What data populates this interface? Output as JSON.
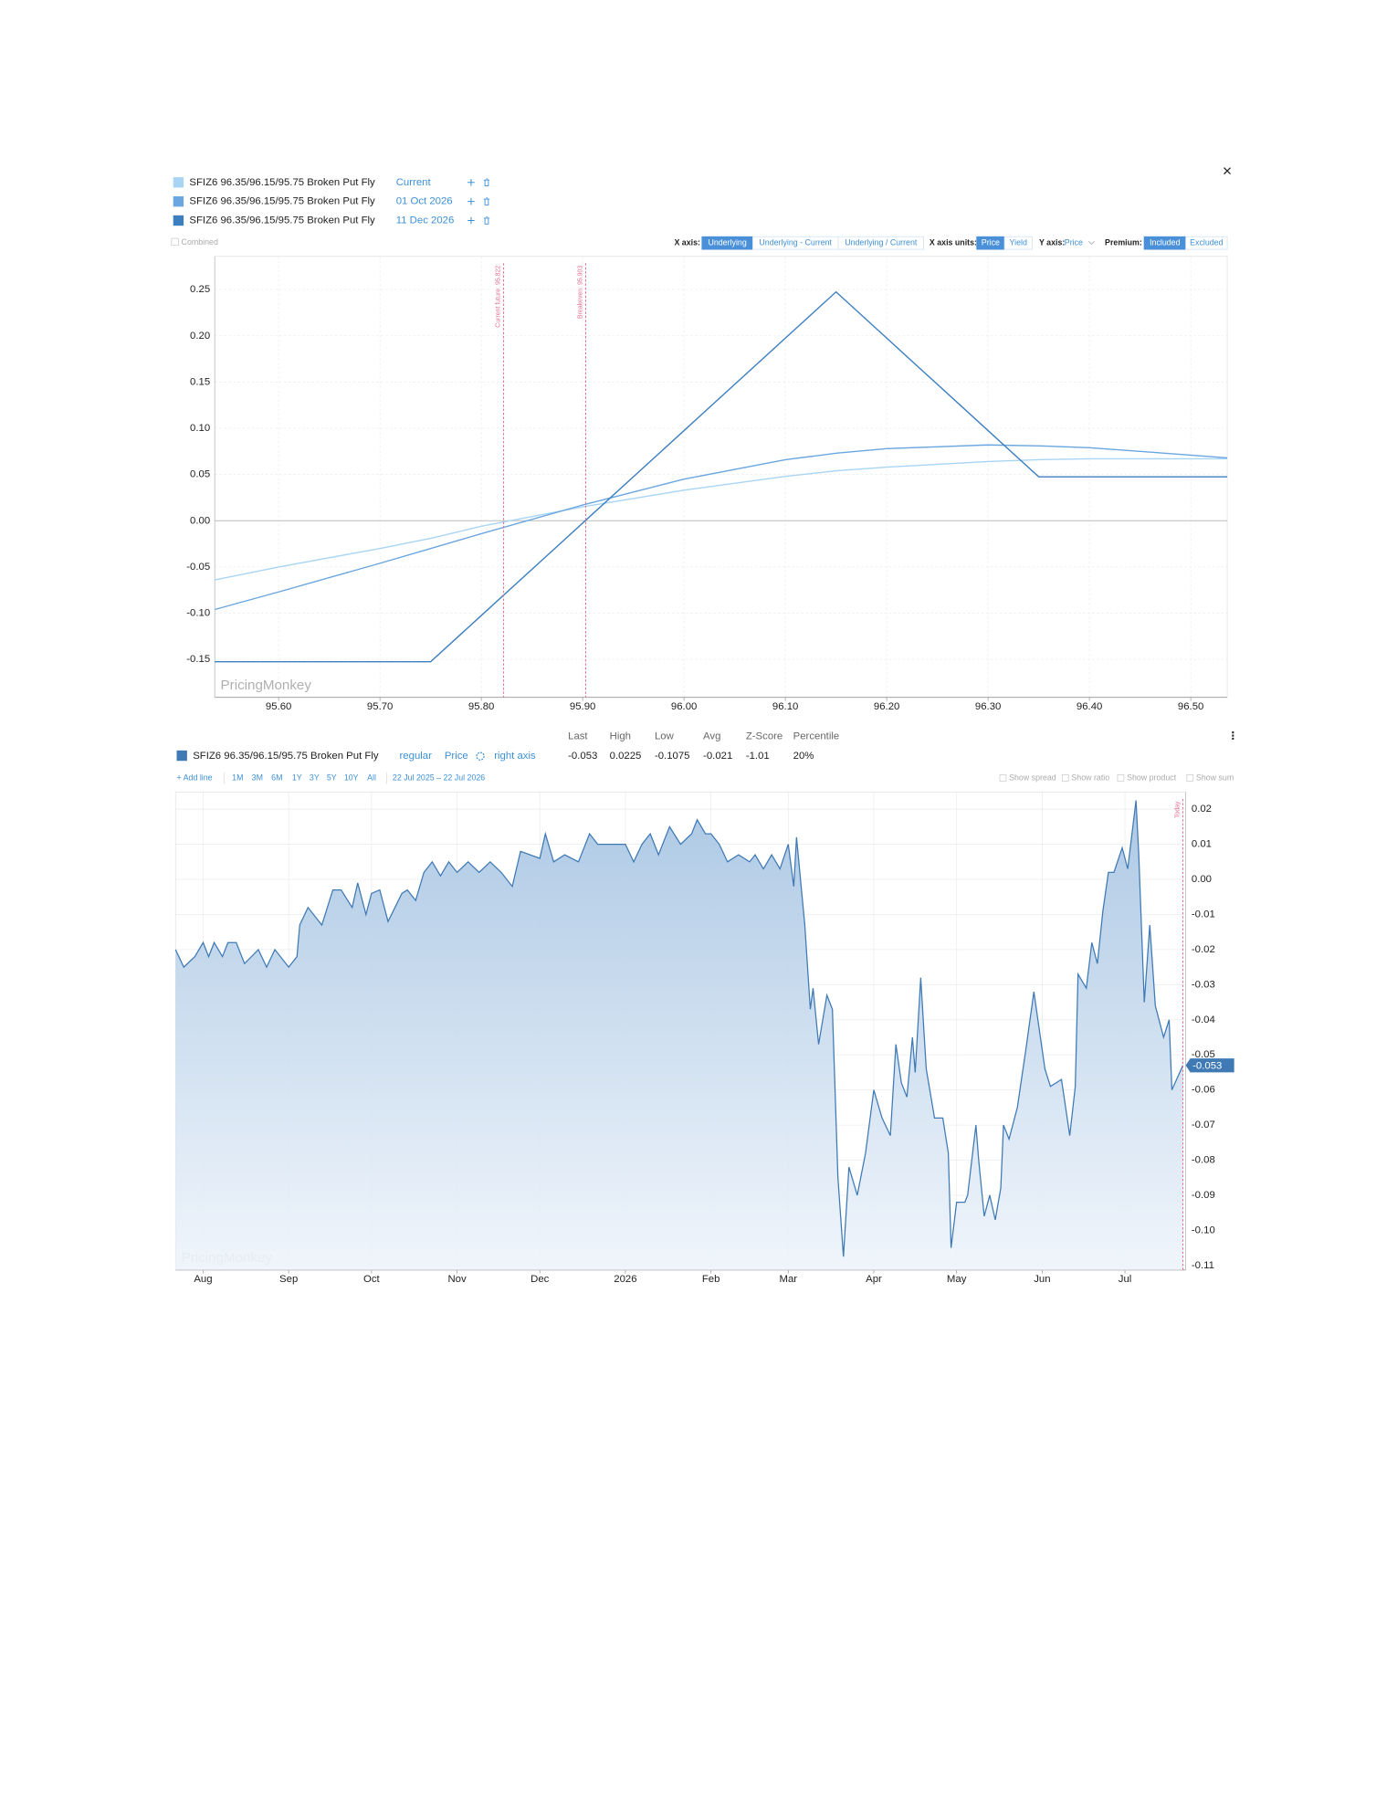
{
  "close": "×",
  "payoff_panel": {
    "combined": "Combined",
    "toolbar": {
      "x_axis": {
        "label": "X axis:",
        "options": [
          "Underlying",
          "Underlying - Current",
          "Underlying / Current"
        ]
      },
      "x_axis_units": {
        "label": "X axis units:",
        "options": [
          "Price",
          "Yield"
        ]
      },
      "y_axis": {
        "label": "Y axis:",
        "value": "Price"
      },
      "premium": {
        "label": "Premium:",
        "options": [
          "Included",
          "Excluded"
        ]
      }
    }
  },
  "history_panel": {
    "stats": {
      "headers": [
        "Last",
        "High",
        "Low",
        "Avg",
        "Z-Score",
        "Percentile"
      ],
      "values": [
        "-0.053",
        "0.0225",
        "-0.1075",
        "-0.021",
        "-1.01",
        "20%"
      ]
    },
    "legend": {
      "style": "regular",
      "units": "Price",
      "axis": "right axis"
    },
    "add_line": "+ Add line",
    "ranges": [
      "1M",
      "3M",
      "6M",
      "1Y",
      "3Y",
      "5Y",
      "10Y",
      "All"
    ],
    "date_range": "22 Jul 2025 – 22 Jul 2026",
    "toggles": [
      "Show spread",
      "Show ratio",
      "Show product",
      "Show sum"
    ]
  },
  "chart_data": [
    {
      "type": "line",
      "x": [
        95.537,
        95.6,
        95.7,
        95.75,
        95.8,
        95.9,
        96.0,
        96.1,
        96.15,
        96.2,
        96.3,
        96.35,
        96.4,
        96.5,
        96.536
      ],
      "series": [
        {
          "name": "SFIZ6 96.35/96.15/95.75 Broken Put Fly",
          "tag": "Current",
          "color": "#a9d5f5",
          "values": [
            -0.064,
            -0.05,
            -0.03,
            -0.019,
            -0.006,
            0.015,
            0.033,
            0.048,
            0.054,
            0.058,
            0.064,
            0.066,
            0.067,
            0.067,
            0.067
          ]
        },
        {
          "name": "SFIZ6 96.35/96.15/95.75 Broken Put Fly",
          "tag": "01 Oct 2026",
          "color": "#6aa6e0",
          "values": [
            -0.096,
            -0.077,
            -0.046,
            -0.03,
            -0.014,
            0.017,
            0.045,
            0.066,
            0.073,
            0.078,
            0.082,
            0.081,
            0.079,
            0.071,
            0.068
          ]
        },
        {
          "name": "SFIZ6 96.35/96.15/95.75 Broken Put Fly",
          "tag": "11 Dec 2026",
          "color": "#3c7fc0",
          "values": [
            -0.1525,
            -0.1525,
            -0.1525,
            -0.1525,
            -0.1025,
            -0.0025,
            0.0975,
            0.1975,
            0.2475,
            0.1975,
            0.0975,
            0.0475,
            0.0475,
            0.0475,
            0.0475
          ]
        }
      ],
      "xlim": [
        95.537,
        96.536
      ],
      "ylim": [
        -0.191,
        0.286
      ],
      "xticks": [
        {
          "value": 95.6,
          "label": "95.60"
        },
        {
          "value": 95.7,
          "label": "95.70"
        },
        {
          "value": 95.8,
          "label": "95.80"
        },
        {
          "value": 95.9,
          "label": "95.90"
        },
        {
          "value": 96.0,
          "label": "96.00"
        },
        {
          "value": 96.1,
          "label": "96.10"
        },
        {
          "value": 96.2,
          "label": "96.20"
        },
        {
          "value": 96.3,
          "label": "96.30"
        },
        {
          "value": 96.4,
          "label": "96.40"
        },
        {
          "value": 96.5,
          "label": "96.50"
        }
      ],
      "yticks": [
        {
          "value": 0.25,
          "label": "0.25"
        },
        {
          "value": 0.2,
          "label": "0.20"
        },
        {
          "value": 0.15,
          "label": "0.15"
        },
        {
          "value": 0.1,
          "label": "0.10"
        },
        {
          "value": 0.05,
          "label": "0.05"
        },
        {
          "value": 0,
          "label": "0.00"
        },
        {
          "value": -0.05,
          "label": "-0.05"
        },
        {
          "value": -0.1,
          "label": "-0.10"
        },
        {
          "value": -0.15,
          "label": "-0.15"
        }
      ],
      "y_axis": "left",
      "grid": true,
      "annotations": [
        {
          "text": "Current future: 95.822",
          "x": 95.822
        },
        {
          "text": "Breakeven: 95.903",
          "x": 95.903
        }
      ],
      "watermark": "PricingMonkey"
    },
    {
      "type": "area",
      "x": [
        "2025-07-22",
        "2025-07-25",
        "2025-07-29",
        "2025-08-01",
        "2025-08-03",
        "2025-08-05",
        "2025-08-08",
        "2025-08-10",
        "2025-08-13",
        "2025-08-16",
        "2025-08-21",
        "2025-08-24",
        "2025-08-27",
        "2025-09-01",
        "2025-09-04",
        "2025-09-05",
        "2025-09-08",
        "2025-09-10",
        "2025-09-13",
        "2025-09-17",
        "2025-09-20",
        "2025-09-24",
        "2025-09-26",
        "2025-09-29",
        "2025-10-01",
        "2025-10-04",
        "2025-10-07",
        "2025-10-12",
        "2025-10-14",
        "2025-10-17",
        "2025-10-20",
        "2025-10-23",
        "2025-10-26",
        "2025-10-29",
        "2025-11-01",
        "2025-11-05",
        "2025-11-09",
        "2025-11-13",
        "2025-11-17",
        "2025-11-21",
        "2025-11-24",
        "2025-12-01",
        "2025-12-03",
        "2025-12-06",
        "2025-12-10",
        "2025-12-15",
        "2025-12-19",
        "2025-12-22",
        "2025-12-25",
        "2025-12-30",
        "2026-01-01",
        "2026-01-04",
        "2026-01-07",
        "2026-01-10",
        "2026-01-13",
        "2026-01-17",
        "2026-01-21",
        "2026-01-25",
        "2026-01-27",
        "2026-01-30",
        "2026-02-01",
        "2026-02-04",
        "2026-02-07",
        "2026-02-11",
        "2026-02-15",
        "2026-02-17",
        "2026-02-20",
        "2026-02-23",
        "2026-02-26",
        "2026-03-01",
        "2026-03-03",
        "2026-03-04",
        "2026-03-07",
        "2026-03-09",
        "2026-03-10",
        "2026-03-12",
        "2026-03-15",
        "2026-03-17",
        "2026-03-19",
        "2026-03-21",
        "2026-03-23",
        "2026-03-26",
        "2026-03-29",
        "2026-04-01",
        "2026-04-04",
        "2026-04-07",
        "2026-04-09",
        "2026-04-11",
        "2026-04-13",
        "2026-04-15",
        "2026-04-16",
        "2026-04-18",
        "2026-04-20",
        "2026-04-23",
        "2026-04-26",
        "2026-04-28",
        "2026-04-29",
        "2026-05-01",
        "2026-05-04",
        "2026-05-05",
        "2026-05-08",
        "2026-05-09",
        "2026-05-11",
        "2026-05-13",
        "2026-05-15",
        "2026-05-17",
        "2026-05-18",
        "2026-05-20",
        "2026-05-23",
        "2026-05-26",
        "2026-05-29",
        "2026-06-02",
        "2026-06-04",
        "2026-06-08",
        "2026-06-11",
        "2026-06-13",
        "2026-06-14",
        "2026-06-17",
        "2026-06-19",
        "2026-06-21",
        "2026-06-23",
        "2026-06-25",
        "2026-06-27",
        "2026-06-30",
        "2026-07-02",
        "2026-07-05",
        "2026-07-06",
        "2026-07-08",
        "2026-07-10",
        "2026-07-12",
        "2026-07-15",
        "2026-07-17",
        "2026-07-18",
        "2026-07-22"
      ],
      "series": [
        {
          "name": "SFIZ6 96.35/96.15/95.75 Broken Put Fly",
          "color": "#3f7ab5",
          "values": [
            -0.02,
            -0.025,
            -0.022,
            -0.018,
            -0.022,
            -0.018,
            -0.022,
            -0.018,
            -0.018,
            -0.024,
            -0.02,
            -0.025,
            -0.02,
            -0.025,
            -0.022,
            -0.013,
            -0.008,
            -0.01,
            -0.013,
            -0.003,
            -0.003,
            -0.008,
            -0.001,
            -0.01,
            -0.004,
            -0.003,
            -0.012,
            -0.004,
            -0.003,
            -0.006,
            0.002,
            0.005,
            0.001,
            0.005,
            0.002,
            0.005,
            0.002,
            0.005,
            0.002,
            -0.002,
            0.008,
            0.006,
            0.013,
            0.005,
            0.007,
            0.005,
            0.013,
            0.01,
            0.01,
            0.01,
            0.01,
            0.005,
            0.01,
            0.013,
            0.007,
            0.015,
            0.01,
            0.013,
            0.017,
            0.013,
            0.013,
            0.01,
            0.005,
            0.007,
            0.005,
            0.007,
            0.003,
            0.007,
            0.003,
            0.01,
            -0.002,
            0.012,
            -0.013,
            -0.037,
            -0.031,
            -0.047,
            -0.033,
            -0.037,
            -0.085,
            -0.1075,
            -0.082,
            -0.09,
            -0.078,
            -0.06,
            -0.068,
            -0.073,
            -0.047,
            -0.058,
            -0.062,
            -0.045,
            -0.055,
            -0.028,
            -0.054,
            -0.068,
            -0.068,
            -0.078,
            -0.105,
            -0.092,
            -0.092,
            -0.09,
            -0.07,
            -0.08,
            -0.096,
            -0.09,
            -0.097,
            -0.088,
            -0.07,
            -0.074,
            -0.065,
            -0.049,
            -0.032,
            -0.054,
            -0.059,
            -0.057,
            -0.073,
            -0.059,
            -0.027,
            -0.031,
            -0.018,
            -0.024,
            -0.009,
            0.002,
            0.002,
            0.009,
            0.003,
            0.0225,
            0.007,
            -0.035,
            -0.013,
            -0.036,
            -0.045,
            -0.04,
            -0.06,
            -0.053
          ]
        }
      ],
      "xlim": [
        "2025-07-22",
        "2026-07-23"
      ],
      "ylim": [
        -0.1113,
        0.0249
      ],
      "xticks": [
        {
          "value": "2025-08-01",
          "label": "Aug"
        },
        {
          "value": "2025-09-01",
          "label": "Sep"
        },
        {
          "value": "2025-10-01",
          "label": "Oct"
        },
        {
          "value": "2025-11-01",
          "label": "Nov"
        },
        {
          "value": "2025-12-01",
          "label": "Dec"
        },
        {
          "value": "2026-01-01",
          "label": "2026"
        },
        {
          "value": "2026-02-01",
          "label": "Feb"
        },
        {
          "value": "2026-03-01",
          "label": "Mar"
        },
        {
          "value": "2026-04-01",
          "label": "Apr"
        },
        {
          "value": "2026-05-01",
          "label": "May"
        },
        {
          "value": "2026-06-01",
          "label": "Jun"
        },
        {
          "value": "2026-07-01",
          "label": "Jul"
        }
      ],
      "yticks": [
        {
          "value": 0.02,
          "label": "0.02"
        },
        {
          "value": 0.01,
          "label": "0.01"
        },
        {
          "value": 0,
          "label": "0.00"
        },
        {
          "value": -0.01,
          "label": "-0.01"
        },
        {
          "value": -0.02,
          "label": "-0.02"
        },
        {
          "value": -0.03,
          "label": "-0.03"
        },
        {
          "value": -0.04,
          "label": "-0.04"
        },
        {
          "value": -0.05,
          "label": "-0.05"
        },
        {
          "value": -0.06,
          "label": "-0.06"
        },
        {
          "value": -0.07,
          "label": "-0.07"
        },
        {
          "value": -0.08,
          "label": "-0.08"
        },
        {
          "value": -0.09,
          "label": "-0.09"
        },
        {
          "value": -0.1,
          "label": "-0.10"
        },
        {
          "value": -0.11,
          "label": "-0.11"
        }
      ],
      "y_axis": "right",
      "grid": true,
      "annotations": [
        {
          "text": "Today",
          "x": "2026-07-22"
        }
      ],
      "watermark": "PricingMonkey"
    }
  ]
}
